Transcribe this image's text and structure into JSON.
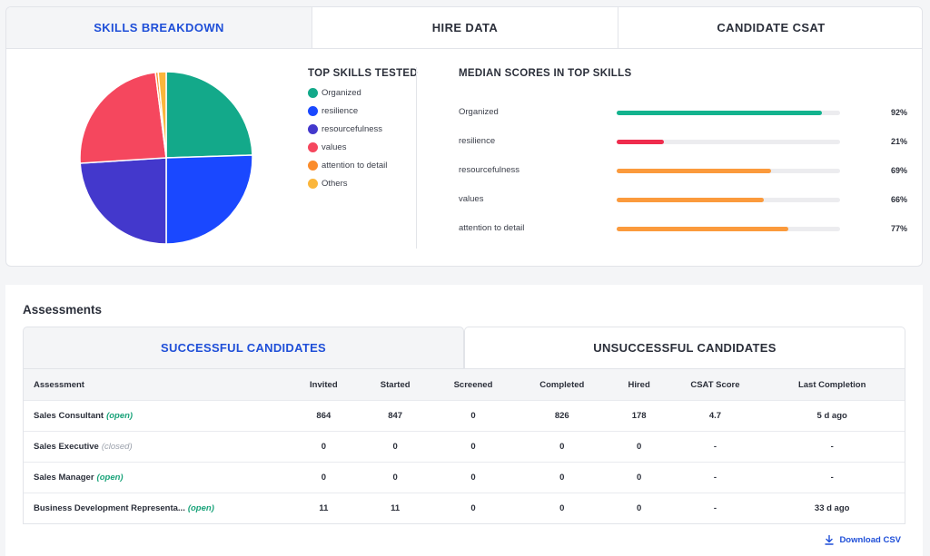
{
  "top_tabs": [
    {
      "label": "SKILLS BREAKDOWN",
      "active": true
    },
    {
      "label": "HIRE DATA",
      "active": false
    },
    {
      "label": "CANDIDATE CSAT",
      "active": false
    }
  ],
  "top_skills": {
    "title": "TOP SKILLS TESTED",
    "items": [
      {
        "label": "Organized",
        "color": "#13a98a"
      },
      {
        "label": "resilience",
        "color": "#1a48ff"
      },
      {
        "label": "resourcefulness",
        "color": "#4338cc"
      },
      {
        "label": "values",
        "color": "#f5475e"
      },
      {
        "label": "attention to detail",
        "color": "#fb8c2c"
      },
      {
        "label": "Others",
        "color": "#fbb63b"
      }
    ]
  },
  "chart_data": {
    "type": "pie",
    "slices": [
      {
        "label": "Organized",
        "value": 24.5,
        "color": "#13a98a"
      },
      {
        "label": "resilience",
        "value": 25.5,
        "color": "#1a48ff"
      },
      {
        "label": "resourcefulness",
        "value": 24.0,
        "color": "#4338cc"
      },
      {
        "label": "values",
        "value": 24.0,
        "color": "#f5475e"
      },
      {
        "label": "attention to detail",
        "value": 0.5,
        "color": "#fb8c2c"
      },
      {
        "label": "Others",
        "value": 1.5,
        "color": "#fbb63b"
      }
    ]
  },
  "median_scores": {
    "title": "MEDIAN SCORES IN TOP SKILLS",
    "rows": [
      {
        "label": "Organized",
        "value": 92,
        "pct": "92%",
        "color": "#13b38e"
      },
      {
        "label": "resilience",
        "value": 21,
        "pct": "21%",
        "color": "#ef2c4d"
      },
      {
        "label": "resourcefulness",
        "value": 69,
        "pct": "69%",
        "color": "#fb9a3c"
      },
      {
        "label": "values",
        "value": 66,
        "pct": "66%",
        "color": "#fb9a3c"
      },
      {
        "label": "attention to detail",
        "value": 77,
        "pct": "77%",
        "color": "#fb9a3c"
      }
    ]
  },
  "assessments": {
    "title": "Assessments",
    "tabs": [
      {
        "label": "SUCCESSFUL CANDIDATES",
        "active": true
      },
      {
        "label": "UNSUCCESSFUL CANDIDATES",
        "active": false
      }
    ],
    "columns": [
      "Assessment",
      "Invited",
      "Started",
      "Screened",
      "Completed",
      "Hired",
      "CSAT Score",
      "Last Completion"
    ],
    "rows": [
      {
        "name": "Sales Consultant",
        "status": "(open)",
        "status_type": "open",
        "cells": [
          "864",
          "847",
          "0",
          "826",
          "178",
          "4.7",
          "5 d ago"
        ]
      },
      {
        "name": "Sales Executive",
        "status": "(closed)",
        "status_type": "closed",
        "cells": [
          "0",
          "0",
          "0",
          "0",
          "0",
          "-",
          "-"
        ]
      },
      {
        "name": "Sales Manager",
        "status": "(open)",
        "status_type": "open",
        "cells": [
          "0",
          "0",
          "0",
          "0",
          "0",
          "-",
          "-"
        ]
      },
      {
        "name": "Business Development Representa...",
        "status": "(open)",
        "status_type": "open",
        "cells": [
          "11",
          "11",
          "0",
          "0",
          "0",
          "-",
          "33 d ago"
        ]
      }
    ],
    "download_label": "Download CSV",
    "download_icon": "download-icon"
  }
}
